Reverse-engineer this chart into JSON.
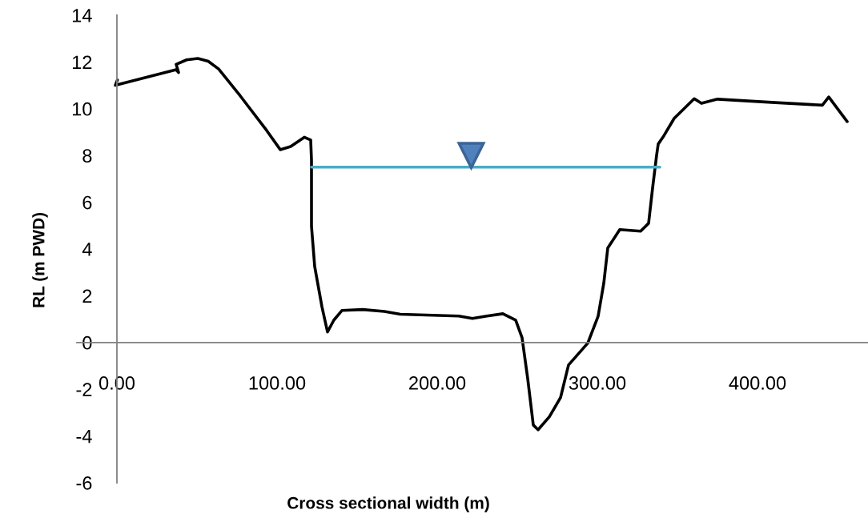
{
  "chart_data": {
    "type": "line",
    "xlabel": "Cross sectional width (m)",
    "ylabel": "RL (m PWD)",
    "xlim": [
      -25,
      469
    ],
    "ylim": [
      -6,
      14
    ],
    "xticks": [
      {
        "value": 0,
        "label": "0.00"
      },
      {
        "value": 100,
        "label": "100.00"
      },
      {
        "value": 200,
        "label": "200.00"
      },
      {
        "value": 300,
        "label": "300.00"
      },
      {
        "value": 400,
        "label": "400.00"
      }
    ],
    "yticks": [
      -6,
      -4,
      -2,
      0,
      2,
      4,
      6,
      8,
      10,
      12,
      14
    ],
    "grid": false,
    "series": [
      {
        "color": "#000000",
        "x": [
          0.3,
          -1,
          37,
          38.5,
          37,
          43.5,
          50.5,
          57,
          63.5,
          77,
          93.5,
          102,
          108.5,
          117,
          121,
          121.5,
          121.5,
          123.5,
          128,
          131.5,
          135.5,
          140.5,
          153.5,
          167,
          177,
          213.5,
          222,
          231,
          241,
          249,
          253,
          256.5,
          260,
          263,
          270,
          277,
          282,
          294,
          300.5,
          304,
          306.5,
          314,
          327,
          332,
          334.5,
          337,
          338,
          341.5,
          348,
          360.5,
          365,
          375,
          409,
          440.5,
          444.5,
          456
        ],
        "values": [
          11.23,
          11.0,
          11.67,
          11.55,
          11.9,
          12.09,
          12.15,
          12.03,
          11.7,
          10.55,
          9.07,
          8.25,
          8.38,
          8.78,
          8.66,
          7.8,
          4.97,
          3.25,
          1.54,
          0.45,
          0.96,
          1.37,
          1.41,
          1.33,
          1.21,
          1.13,
          1.03,
          1.13,
          1.23,
          0.96,
          0.2,
          -1.54,
          -3.53,
          -3.73,
          -3.18,
          -2.36,
          -0.96,
          -0.03,
          1.13,
          2.53,
          4.04,
          4.83,
          4.76,
          5.1,
          6.61,
          8.01,
          8.49,
          8.84,
          9.59,
          10.43,
          10.23,
          10.41,
          10.27,
          10.15,
          10.5,
          9.45
        ]
      },
      {
        "color": "#4bacc6",
        "x": [
          121.5,
          339
        ],
        "values": [
          7.5,
          7.5
        ]
      }
    ]
  }
}
